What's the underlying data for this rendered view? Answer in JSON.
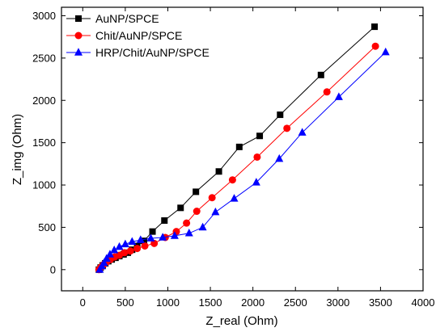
{
  "chart_data": {
    "type": "scatter",
    "title": "",
    "xlabel": "Z_real (Ohm)",
    "ylabel": "Z_img (Ohm)",
    "xlim": [
      -250,
      4000
    ],
    "ylim": [
      -250,
      3100
    ],
    "xticks": [
      0,
      500,
      1000,
      1500,
      2000,
      2500,
      3000,
      3500,
      4000
    ],
    "yticks": [
      0,
      500,
      1000,
      1500,
      2000,
      2500,
      3000
    ],
    "grid": false,
    "legend_position": "top-left",
    "series": [
      {
        "name": "AuNP/SPCE",
        "marker": "square",
        "color": "#000000",
        "x": [
          190,
          210,
          235,
          265,
          300,
          340,
          385,
          430,
          480,
          530,
          580,
          640,
          720,
          820,
          960,
          1150,
          1330,
          1600,
          1840,
          2080,
          2320,
          2800,
          3430
        ],
        "y": [
          0,
          25,
          50,
          75,
          100,
          120,
          140,
          160,
          180,
          200,
          235,
          280,
          340,
          450,
          580,
          730,
          920,
          1160,
          1450,
          1580,
          1830,
          2300,
          2870
        ]
      },
      {
        "name": "Chit/AuNP/SPCE",
        "marker": "circle",
        "color": "#ff0000",
        "x": [
          190,
          215,
          245,
          280,
          325,
          375,
          430,
          490,
          560,
          640,
          730,
          840,
          970,
          1100,
          1220,
          1340,
          1520,
          1760,
          2050,
          2400,
          2870,
          3440
        ],
        "y": [
          0,
          30,
          60,
          90,
          120,
          150,
          170,
          200,
          220,
          250,
          280,
          310,
          380,
          450,
          550,
          690,
          850,
          1060,
          1330,
          1670,
          2100,
          2640
        ]
      },
      {
        "name": "HRP/Chit/AuNP/SPCE",
        "marker": "triangle",
        "color": "#0000ff",
        "x": [
          200,
          225,
          250,
          280,
          320,
          370,
          430,
          500,
          580,
          680,
          800,
          940,
          1080,
          1250,
          1410,
          1560,
          1780,
          2040,
          2310,
          2580,
          3010,
          3560
        ],
        "y": [
          0,
          40,
          80,
          130,
          180,
          230,
          270,
          300,
          330,
          350,
          370,
          380,
          400,
          430,
          500,
          680,
          840,
          1030,
          1310,
          1620,
          2040,
          2570
        ]
      }
    ]
  }
}
